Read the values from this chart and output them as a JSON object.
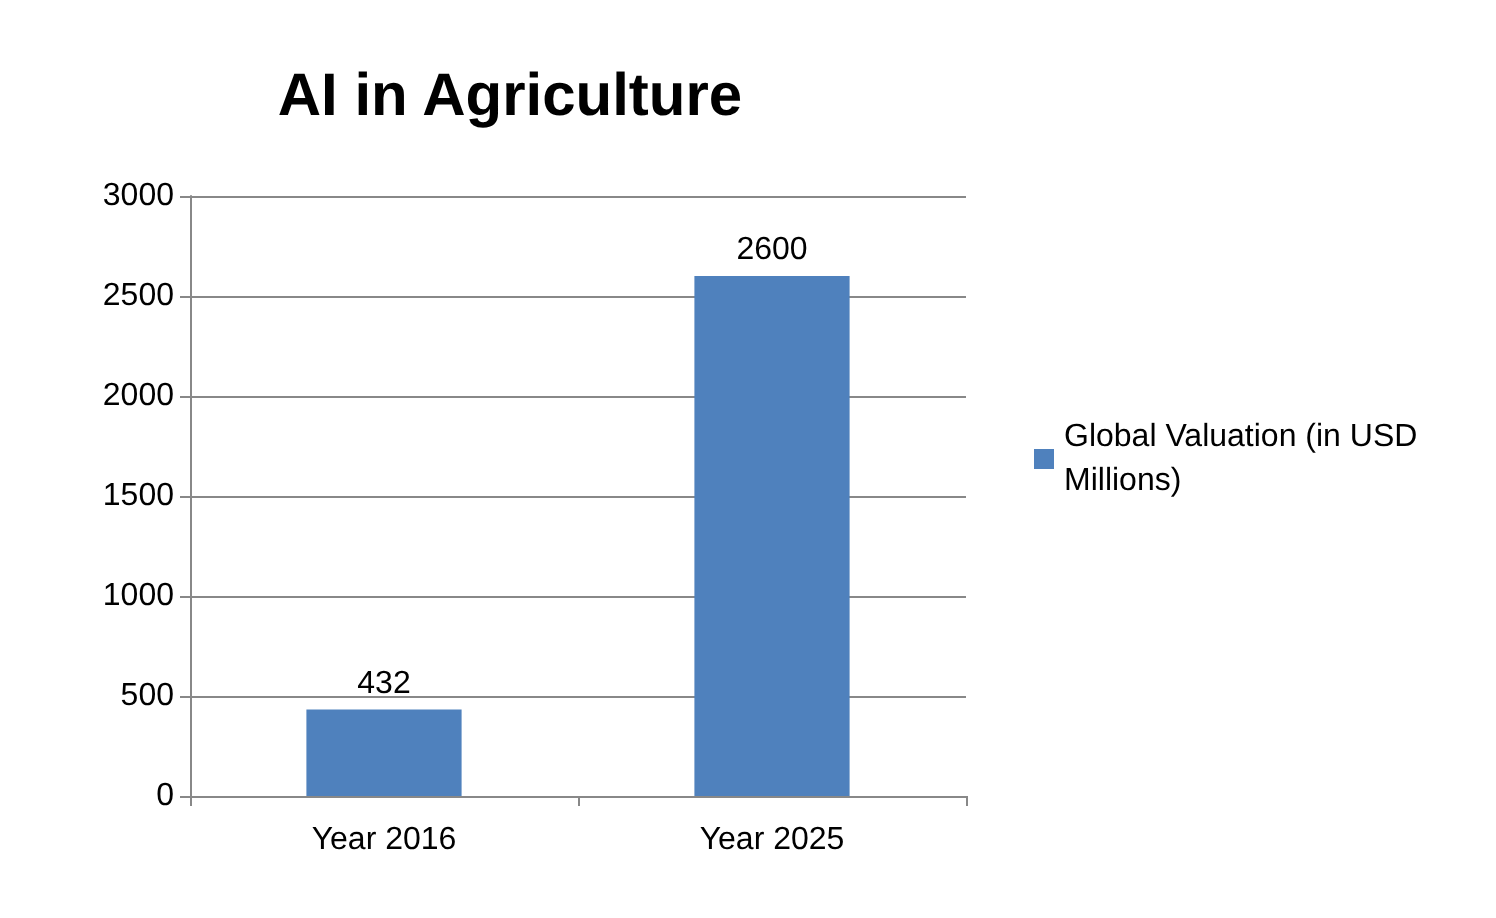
{
  "chart_data": {
    "type": "bar",
    "title": "AI in Agriculture",
    "categories": [
      "Year 2016",
      "Year 2025"
    ],
    "series": [
      {
        "name": "Global Valuation (in USD Millions)",
        "color": "#4f81bd",
        "values": [
          432,
          2600
        ]
      }
    ],
    "ylim": [
      0,
      3000
    ],
    "yticks": [
      0,
      500,
      1000,
      1500,
      2000,
      2500,
      3000
    ],
    "grid": "y",
    "legend": "right",
    "data_labels": true
  }
}
